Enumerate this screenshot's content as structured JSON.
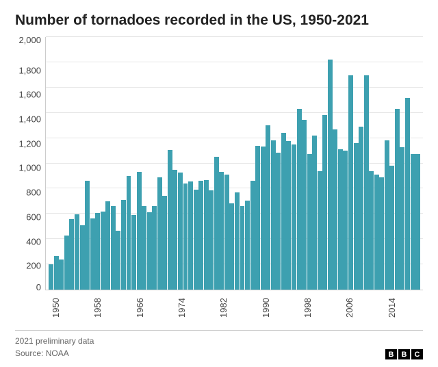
{
  "chart": {
    "type": "bar",
    "title": "Number of tornadoes recorded in the US, 1950-2021",
    "title_fontsize": 21,
    "title_color": "#222222",
    "background_color": "#ffffff",
    "grid_color": "#e6e6e6",
    "axis_line_color": "#cccccc",
    "tick_font_size": 13,
    "tick_color": "#444444",
    "bar_color": "#3da0b0",
    "bar_width_ratio": 0.9,
    "ylim": [
      0,
      2000
    ],
    "y_ticks": [
      2000,
      1800,
      1600,
      1400,
      1200,
      1000,
      800,
      600,
      400,
      200,
      0
    ],
    "y_tick_labels": [
      "2,000",
      "1,800",
      "1,600",
      "1,400",
      "1,200",
      "1,000",
      "800",
      "600",
      "400",
      "200",
      "0"
    ],
    "x_ticks": [
      1950,
      1958,
      1966,
      1974,
      1982,
      1990,
      1998,
      2006,
      2014
    ],
    "x_tick_rotated": true,
    "years": [
      1950,
      1951,
      1952,
      1953,
      1954,
      1955,
      1956,
      1957,
      1958,
      1959,
      1960,
      1961,
      1962,
      1963,
      1964,
      1965,
      1966,
      1967,
      1968,
      1969,
      1970,
      1971,
      1972,
      1973,
      1974,
      1975,
      1976,
      1977,
      1978,
      1979,
      1980,
      1981,
      1982,
      1983,
      1984,
      1985,
      1986,
      1987,
      1988,
      1989,
      1990,
      1991,
      1992,
      1993,
      1994,
      1995,
      1996,
      1997,
      1998,
      1999,
      2000,
      2001,
      2002,
      2003,
      2004,
      2005,
      2006,
      2007,
      2008,
      2009,
      2010,
      2011,
      2012,
      2013,
      2014,
      2015,
      2016,
      2017,
      2018,
      2019,
      2020,
      2021
    ],
    "values": [
      200,
      265,
      240,
      430,
      560,
      595,
      510,
      860,
      565,
      605,
      620,
      700,
      660,
      465,
      710,
      900,
      590,
      930,
      660,
      610,
      660,
      890,
      740,
      1105,
      950,
      925,
      840,
      855,
      790,
      860,
      870,
      785,
      1050,
      935,
      910,
      685,
      770,
      660,
      705,
      860,
      1140,
      1135,
      1300,
      1180,
      1085,
      1240,
      1175,
      1150,
      1430,
      1345,
      1075,
      1220,
      940,
      1380,
      1820,
      1270,
      1110,
      1100,
      1695,
      1160,
      1290,
      1695,
      940,
      910,
      890,
      1180,
      980,
      1430,
      1130,
      1520,
      1075,
      1075
    ]
  },
  "footer": {
    "note": "2021 preliminary data",
    "source": "Source: NOAA",
    "note_font_size": 12,
    "note_color": "#666666",
    "logo_letters": [
      "B",
      "B",
      "C"
    ],
    "logo_bg": "#000000",
    "logo_fg": "#ffffff"
  }
}
